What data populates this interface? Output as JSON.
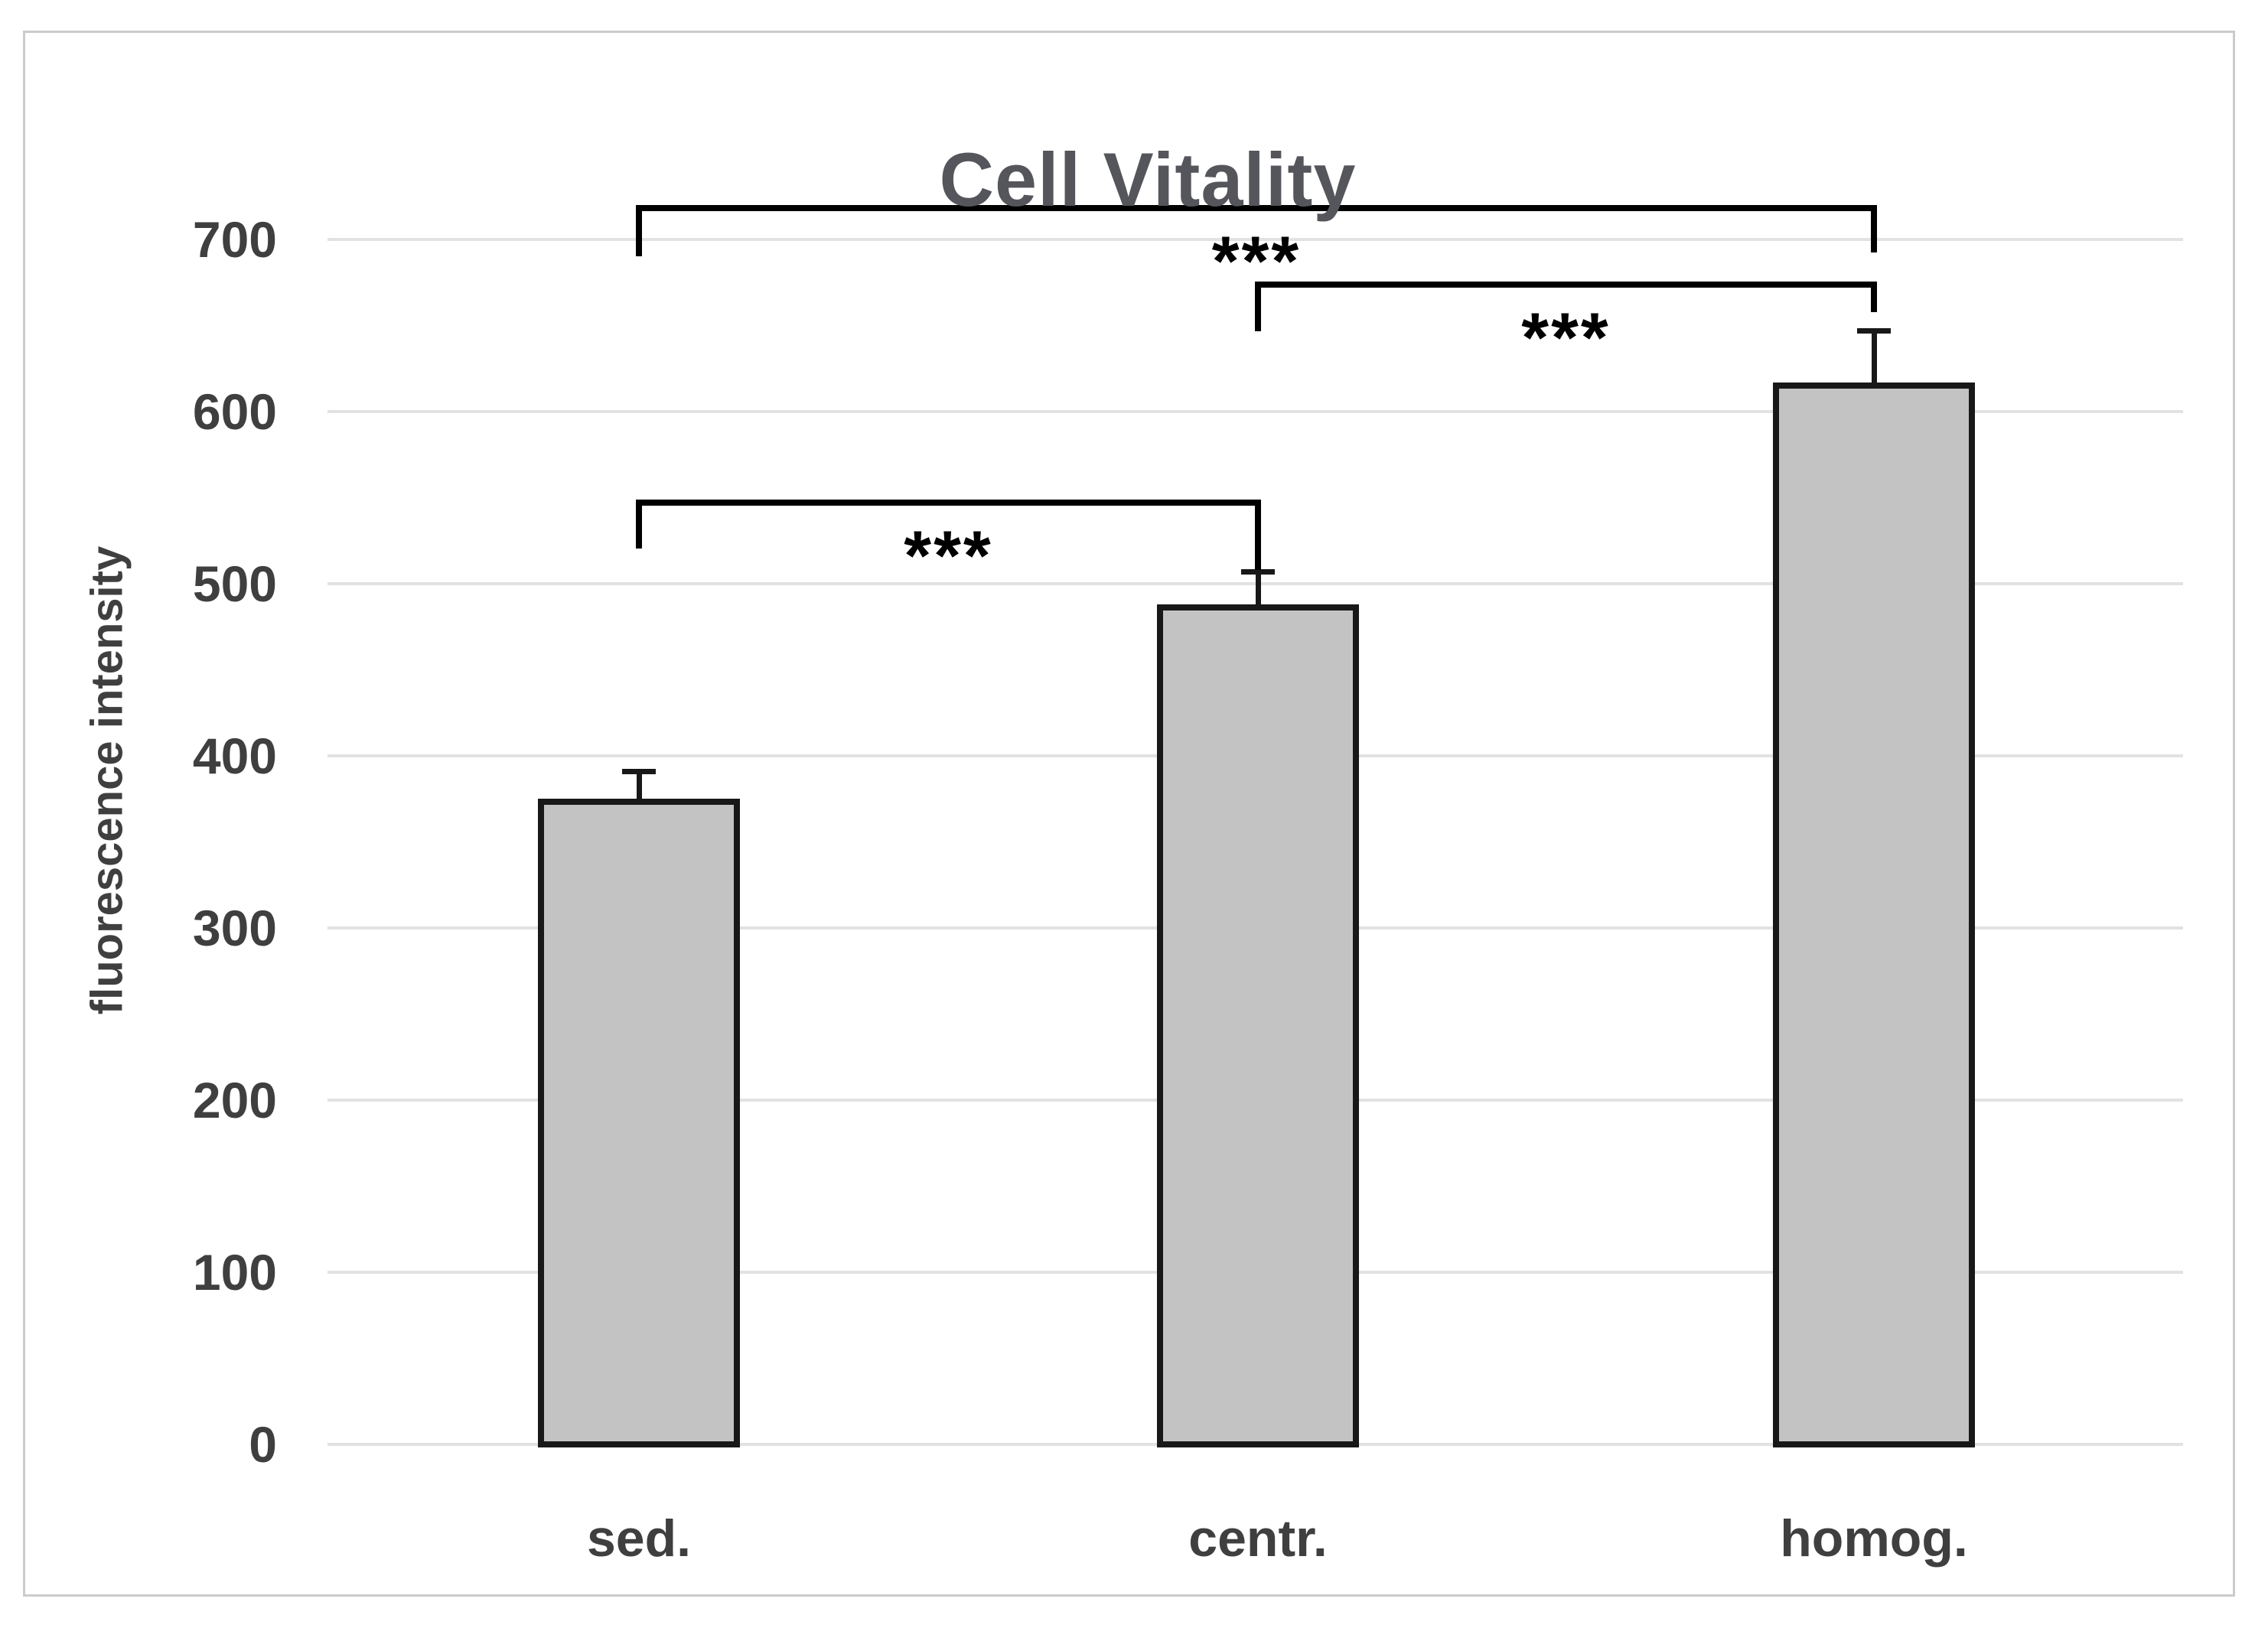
{
  "chart_data": {
    "type": "bar",
    "title": "Cell Vitality",
    "xlabel": "",
    "ylabel": "fluorescence intensity",
    "categories": [
      "sed.",
      "centr.",
      "homog."
    ],
    "values": [
      375,
      488,
      617
    ],
    "error_plus": [
      16,
      19,
      30
    ],
    "ylim": [
      0,
      700
    ],
    "yticks": [
      0,
      100,
      200,
      300,
      400,
      500,
      600,
      700
    ],
    "grid": true,
    "legend_position": "none",
    "significance_brackets": [
      {
        "from": 0,
        "to": 2,
        "label": "***"
      },
      {
        "from": 1,
        "to": 2,
        "label": "***"
      },
      {
        "from": 0,
        "to": 1,
        "label": "***"
      }
    ],
    "colors": {
      "bar_fill": "#c3c3c3",
      "bar_border": "#181818",
      "gridline": "#e2e2e2",
      "title_text": "#55555c",
      "axis_text": "#3f3f3f",
      "annotation": "#000000",
      "frame_border": "#cbcbcb",
      "background": "#ffffff"
    }
  }
}
